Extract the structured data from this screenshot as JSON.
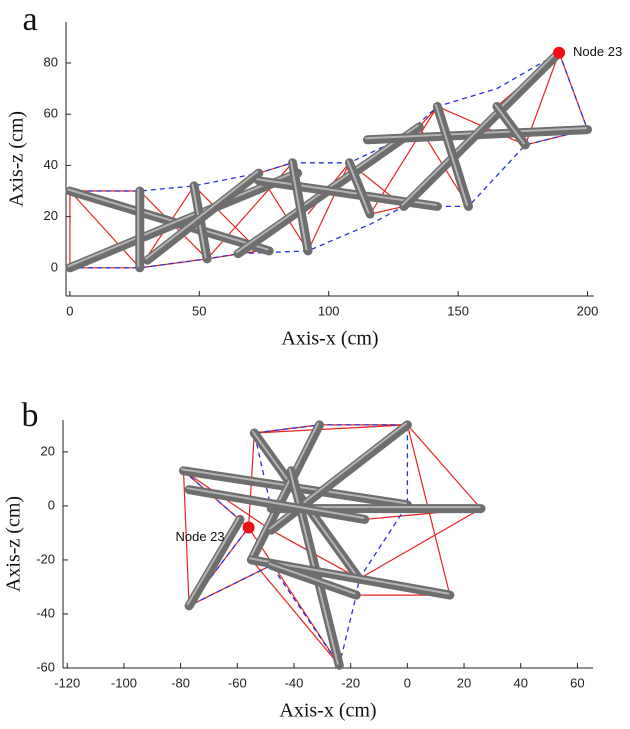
{
  "chart_data": [
    {
      "type": "tensegrity",
      "panel_label": "a",
      "xlabel": "Axis-x (cm)",
      "ylabel": "Axis-z (cm)",
      "xlim": [
        -1.5,
        202.5
      ],
      "ylim": [
        -11,
        96
      ],
      "xticks": [
        0,
        50,
        100,
        150,
        200
      ],
      "yticks": [
        0,
        20,
        40,
        60,
        80
      ],
      "highlight": {
        "label": "Node 23",
        "x": 189,
        "z": 84,
        "color": "#ee1111"
      },
      "series": [
        {
          "style": "cable",
          "color": "#e8231f",
          "x": [
            0,
            0,
            27,
            0,
            27,
            53,
            27,
            48
          ],
          "values": [
            30,
            0,
            0,
            30,
            30,
            3.5,
            0,
            32
          ]
        },
        {
          "style": "cable",
          "color": "#e8231f",
          "x": [
            48,
            73,
            53,
            86,
            73,
            92,
            108,
            92
          ],
          "values": [
            32,
            6.6,
            3.5,
            41,
            37,
            6.6,
            41,
            21
          ]
        },
        {
          "style": "cable",
          "color": "#e8231f",
          "x": [
            108,
            129,
            116,
            142,
            135,
            154,
            142,
            176,
            165,
            189,
            176,
            200,
            189
          ],
          "values": [
            41,
            24,
            21,
            63,
            55,
            24,
            63,
            48,
            63,
            84,
            48,
            54,
            84
          ]
        },
        {
          "style": "dashed",
          "color": "#2233dd",
          "x": [
            0,
            27,
            48,
            73,
            86,
            108,
            129,
            142,
            165,
            189,
            200
          ],
          "values": [
            30,
            30,
            32,
            37,
            41,
            41,
            51,
            63,
            70,
            84,
            54
          ]
        },
        {
          "style": "dashed",
          "color": "#2233dd",
          "x": [
            0,
            27,
            53,
            65,
            92,
            116,
            129,
            154,
            176,
            200
          ],
          "values": [
            0,
            0,
            3.5,
            5.5,
            6.6,
            17,
            24,
            24,
            48,
            54
          ]
        },
        {
          "style": "rod",
          "color": "#6e6e6e",
          "x": [
            0,
            77
          ],
          "values": [
            30,
            6.6
          ]
        },
        {
          "style": "rod",
          "color": "#6e6e6e",
          "x": [
            0,
            88
          ],
          "values": [
            0,
            37
          ]
        },
        {
          "style": "rod",
          "color": "#6e6e6e",
          "x": [
            27,
            27
          ],
          "values": [
            30,
            0
          ]
        },
        {
          "style": "rod",
          "color": "#6e6e6e",
          "x": [
            48,
            53
          ],
          "values": [
            32,
            3.5
          ]
        },
        {
          "style": "rod",
          "color": "#6e6e6e",
          "x": [
            30,
            73
          ],
          "values": [
            3,
            37
          ]
        },
        {
          "style": "rod",
          "color": "#6e6e6e",
          "x": [
            65,
            135
          ],
          "values": [
            5.5,
            55
          ]
        },
        {
          "style": "rod",
          "color": "#6e6e6e",
          "x": [
            73,
            142
          ],
          "values": [
            34,
            24
          ]
        },
        {
          "style": "rod",
          "color": "#6e6e6e",
          "x": [
            86,
            92
          ],
          "values": [
            41,
            6.6
          ]
        },
        {
          "style": "rod",
          "color": "#6e6e6e",
          "x": [
            108,
            116
          ],
          "values": [
            41,
            21
          ]
        },
        {
          "style": "rod",
          "color": "#6e6e6e",
          "x": [
            115,
            200
          ],
          "values": [
            50,
            54
          ]
        },
        {
          "style": "rod",
          "color": "#6e6e6e",
          "x": [
            129,
            189
          ],
          "values": [
            24,
            84
          ]
        },
        {
          "style": "rod",
          "color": "#6e6e6e",
          "x": [
            142,
            154
          ],
          "values": [
            63,
            24
          ]
        },
        {
          "style": "rod",
          "color": "#6e6e6e",
          "x": [
            165,
            176
          ],
          "values": [
            63,
            48
          ]
        }
      ]
    },
    {
      "type": "tensegrity",
      "panel_label": "b",
      "xlabel": "Axis-x (cm)",
      "ylabel": "Axis-z (cm)",
      "xlim": [
        -121.5,
        65.5
      ],
      "ylim": [
        -60,
        31.8
      ],
      "xticks": [
        -120,
        -100,
        -80,
        -60,
        -40,
        -20,
        0,
        20,
        40,
        60
      ],
      "yticks": [
        -60,
        -40,
        -20,
        0,
        20
      ],
      "highlight": {
        "label": "Node 23",
        "x": -56,
        "z": -8,
        "color": "#ee1111"
      },
      "series": [
        {
          "style": "cable",
          "color": "#e8231f",
          "x": [
            -79,
            -77,
            -56,
            -24,
            -55,
            15,
            0,
            26,
            0,
            -54,
            -31,
            0
          ],
          "values": [
            13,
            -37,
            -8,
            -59,
            -20,
            -33,
            30,
            -1,
            30,
            27,
            30,
            30
          ]
        },
        {
          "style": "cable",
          "color": "#e8231f",
          "x": [
            -77,
            -48,
            -18,
            15,
            -17,
            -48,
            -79,
            -56,
            -54,
            -17,
            26,
            -15
          ],
          "values": [
            -37,
            -22,
            -33,
            -33,
            -27,
            -9,
            13,
            -8,
            27,
            -27,
            -1,
            -5
          ]
        },
        {
          "style": "dashed",
          "color": "#2233dd",
          "x": [
            -79,
            -56,
            -77,
            -48,
            -24,
            -18,
            -17,
            0,
            0,
            -31,
            -54,
            -48,
            26
          ],
          "values": [
            13,
            -8,
            -37,
            -22,
            -59,
            -33,
            -27,
            0.4,
            30,
            30,
            27,
            -1,
            -1
          ]
        },
        {
          "style": "rod",
          "color": "#6e6e6e",
          "x": [
            -79,
            0
          ],
          "values": [
            13,
            0.4
          ]
        },
        {
          "style": "rod",
          "color": "#6e6e6e",
          "x": [
            -54,
            -17
          ],
          "values": [
            27,
            -27
          ]
        },
        {
          "style": "rod",
          "color": "#6e6e6e",
          "x": [
            -31,
            -55
          ],
          "values": [
            30,
            -20
          ]
        },
        {
          "style": "rod",
          "color": "#6e6e6e",
          "x": [
            0,
            -48
          ],
          "values": [
            30,
            -9
          ]
        },
        {
          "style": "rod",
          "color": "#6e6e6e",
          "x": [
            -48,
            26
          ],
          "values": [
            -1,
            -1
          ]
        },
        {
          "style": "rod",
          "color": "#6e6e6e",
          "x": [
            -77,
            -59
          ],
          "values": [
            -37,
            -5
          ]
        },
        {
          "style": "rod",
          "color": "#6e6e6e",
          "x": [
            -24,
            -41
          ],
          "values": [
            -59,
            13
          ]
        },
        {
          "style": "rod",
          "color": "#6e6e6e",
          "x": [
            -55,
            15
          ],
          "values": [
            -20,
            -33
          ]
        },
        {
          "style": "rod",
          "color": "#6e6e6e",
          "x": [
            -48,
            -18
          ],
          "values": [
            -22,
            -33
          ]
        },
        {
          "style": "rod",
          "color": "#6e6e6e",
          "x": [
            -77,
            -15
          ],
          "values": [
            6,
            -5
          ]
        }
      ]
    }
  ]
}
